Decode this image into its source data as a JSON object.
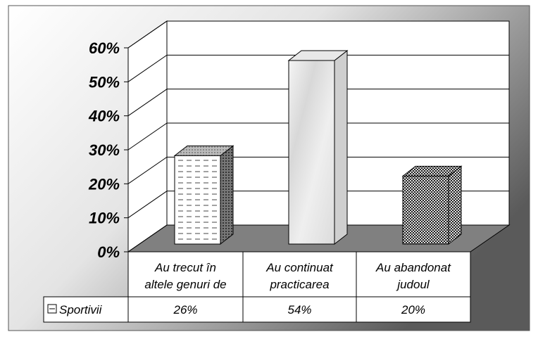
{
  "chart_data": {
    "type": "bar3d",
    "categories": [
      [
        "Au trecut în",
        "altele genuri de"
      ],
      [
        "Au continuat",
        "practicarea"
      ],
      [
        "Au abandonat",
        "judoul"
      ]
    ],
    "series": [
      {
        "name": "Sportivii",
        "values": [
          26,
          54,
          20
        ],
        "value_labels": [
          "26%",
          "54%",
          "20%"
        ]
      }
    ],
    "ylim": [
      0,
      60
    ],
    "yticks": [
      {
        "value": 0,
        "label": "0%"
      },
      {
        "value": 10,
        "label": "10%"
      },
      {
        "value": 20,
        "label": "20%"
      },
      {
        "value": 30,
        "label": "30%"
      },
      {
        "value": 40,
        "label": "40%"
      },
      {
        "value": 50,
        "label": "50%"
      },
      {
        "value": 60,
        "label": "60%"
      }
    ],
    "grid": true,
    "data_table": true
  }
}
